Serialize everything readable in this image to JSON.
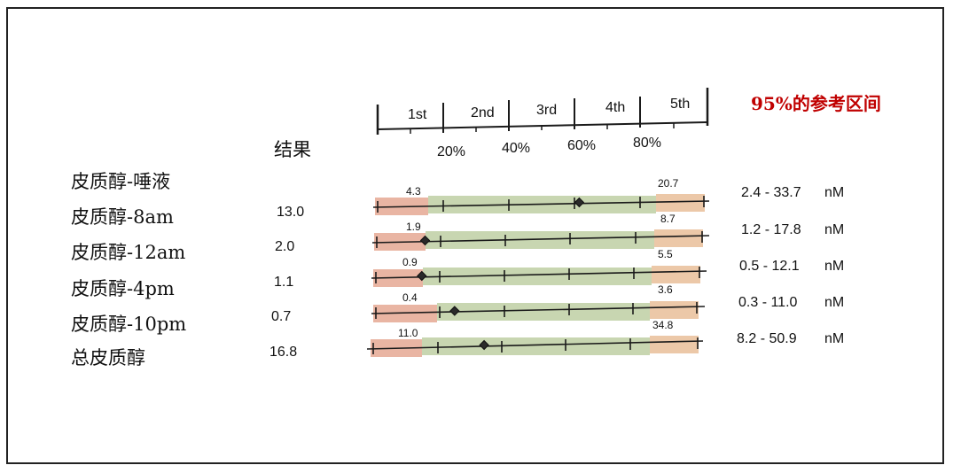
{
  "colors": {
    "ref_title": "#c00000",
    "band_low": "#e9b5a3",
    "band_mid": "#c8d6b1",
    "band_high": "#ecc8a8",
    "line": "#1a1a1a"
  },
  "header": {
    "result_label": "结果",
    "reference_title": "95%的参考区间",
    "quintiles": [
      "1st",
      "2nd",
      "3rd",
      "4th",
      "5th"
    ],
    "percentiles": [
      "20%",
      "40%",
      "60%",
      "80%"
    ]
  },
  "rows": [
    {
      "label": "皮质醇-唾液",
      "result": "",
      "lower": "4.3",
      "upper": "20.7",
      "range": "2.4 - 33.7",
      "unit": "nM",
      "marker_fraction": 0.62
    },
    {
      "label": "皮质醇-8am",
      "result": "13.0",
      "lower": "1.9",
      "upper": "8.7",
      "range": "1.2 - 17.8",
      "unit": "nM",
      "marker_fraction": 0.15
    },
    {
      "label": "皮质醇-12am",
      "result": "2.0",
      "lower": "0.9",
      "upper": "5.5",
      "range": "0.5 - 12.1",
      "unit": "nM",
      "marker_fraction": 0.14
    },
    {
      "label": "皮质醇-4pm",
      "result": "1.1",
      "lower": "0.4",
      "upper": "3.6",
      "range": "0.3 - 11.0",
      "unit": "nM",
      "marker_fraction": 0.24
    },
    {
      "label": "皮质醇-10pm",
      "result": "0.7",
      "lower": "11.0",
      "upper": "34.8",
      "range": "8.2 - 50.9",
      "unit": "nM",
      "marker_fraction": 0.33
    },
    {
      "label": "总皮质醇",
      "result": "16.8",
      "lower": "",
      "upper": "",
      "range": "",
      "unit": "",
      "marker_fraction": null
    }
  ]
}
